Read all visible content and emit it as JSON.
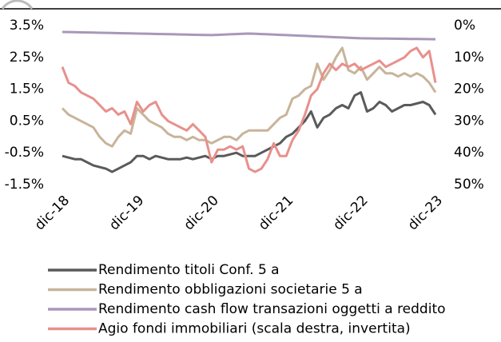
{
  "chart_data": {
    "type": "line",
    "categories": [
      "dic-18",
      null,
      null,
      null,
      null,
      null,
      null,
      null,
      null,
      null,
      null,
      null,
      "dic-19",
      null,
      null,
      null,
      null,
      null,
      null,
      null,
      null,
      null,
      null,
      null,
      "dic-20",
      null,
      null,
      null,
      null,
      null,
      null,
      null,
      null,
      null,
      null,
      null,
      "dic-21",
      null,
      null,
      null,
      null,
      null,
      null,
      null,
      null,
      null,
      null,
      null,
      "dic-22",
      null,
      null,
      null,
      null,
      null,
      null,
      null,
      null,
      null,
      null,
      null,
      "dic-23"
    ],
    "ylim": [
      -1.5,
      3.5
    ],
    "yticks": [
      {
        "value": -1.5,
        "label": "-1.5%"
      },
      {
        "value": -0.5,
        "label": "-0.5%"
      },
      {
        "value": 0.5,
        "label": "0.5%"
      },
      {
        "value": 1.5,
        "label": "1.5%"
      },
      {
        "value": 2.5,
        "label": "2.5%"
      },
      {
        "value": 3.5,
        "label": "3.5%"
      }
    ],
    "y2lim": [
      0,
      50
    ],
    "y2ticks": [
      {
        "value": 0,
        "label": "0%"
      },
      {
        "value": 10,
        "label": "10%"
      },
      {
        "value": 20,
        "label": "20%"
      },
      {
        "value": 30,
        "label": "30%"
      },
      {
        "value": 40,
        "label": "40%"
      },
      {
        "value": 50,
        "label": "50%"
      }
    ],
    "y2_inverted": true,
    "grid": false,
    "legend": "bottom",
    "series": [
      {
        "name": "Rendimento titoli Conf. 5 a",
        "color": "#5a5a5a",
        "values": [
          -0.6,
          -0.65,
          -0.7,
          -0.7,
          -0.8,
          -0.9,
          -0.95,
          -1.0,
          -1.1,
          -1.0,
          -0.9,
          -0.8,
          -0.6,
          -0.6,
          -0.7,
          -0.6,
          -0.65,
          -0.7,
          -0.7,
          -0.7,
          -0.65,
          -0.7,
          -0.65,
          -0.6,
          -0.7,
          -0.6,
          -0.6,
          -0.55,
          -0.5,
          -0.6,
          -0.6,
          -0.6,
          -0.5,
          -0.4,
          -0.3,
          -0.2,
          0.0,
          0.1,
          0.3,
          0.5,
          0.8,
          0.3,
          0.6,
          0.7,
          0.9,
          1.0,
          0.9,
          1.3,
          1.4,
          0.8,
          0.9,
          1.1,
          1.0,
          0.8,
          0.9,
          1.0,
          1.0,
          1.05,
          1.1,
          1.0,
          0.7
        ]
      },
      {
        "name": "Rendimento obbligazioni societarie 5 a",
        "color": "#c8b49a",
        "values": [
          0.9,
          0.7,
          0.6,
          0.5,
          0.4,
          0.3,
          0.0,
          -0.2,
          -0.3,
          0.0,
          0.2,
          0.1,
          0.9,
          0.7,
          0.5,
          0.4,
          0.3,
          0.1,
          0.0,
          0.0,
          -0.1,
          0.0,
          -0.1,
          -0.1,
          -0.2,
          -0.1,
          0.0,
          0.0,
          -0.1,
          0.1,
          0.2,
          0.2,
          0.2,
          0.2,
          0.4,
          0.6,
          0.7,
          1.2,
          1.3,
          1.5,
          1.6,
          2.3,
          1.8,
          2.1,
          2.5,
          2.8,
          2.1,
          2.0,
          2.2,
          1.8,
          2.0,
          2.2,
          2.0,
          2.0,
          1.9,
          2.0,
          1.9,
          2.0,
          1.9,
          1.7,
          1.4
        ]
      },
      {
        "name": "Rendimento cash flow transazioni oggetti a reddito",
        "color": "#a898b8",
        "axis": "y2",
        "values": [
          2.0,
          2.04,
          2.08,
          2.13,
          2.17,
          2.21,
          2.25,
          2.29,
          2.33,
          2.38,
          2.42,
          2.46,
          2.5,
          2.54,
          2.58,
          2.63,
          2.67,
          2.71,
          2.75,
          2.79,
          2.83,
          2.88,
          2.92,
          2.96,
          3.0,
          2.92,
          2.83,
          2.75,
          2.67,
          2.58,
          2.5,
          2.58,
          2.67,
          2.75,
          2.83,
          2.92,
          3.0,
          3.08,
          3.17,
          3.25,
          3.33,
          3.42,
          3.5,
          3.58,
          3.67,
          3.75,
          3.83,
          3.92,
          4.0,
          4.03,
          4.05,
          4.08,
          4.1,
          4.13,
          4.15,
          4.18,
          4.2,
          4.23,
          4.25,
          4.28,
          4.3
        ]
      },
      {
        "name": "Agio fondi immobiliari (scala destra, invertita)",
        "color": "#e8908c",
        "axis": "y2",
        "values": [
          13,
          18,
          19,
          21,
          22,
          23,
          25,
          27,
          26,
          28,
          27,
          31,
          24,
          27,
          25,
          24,
          28,
          30,
          31,
          32,
          33,
          31,
          33,
          35,
          43,
          39,
          39,
          38,
          39,
          38,
          45,
          46,
          45,
          42,
          37,
          41,
          41,
          36,
          33,
          28,
          22,
          20,
          15,
          12,
          14,
          12,
          13,
          12,
          14,
          13,
          12,
          11,
          13,
          12,
          11,
          10,
          8,
          7,
          10,
          8,
          18
        ]
      }
    ]
  }
}
